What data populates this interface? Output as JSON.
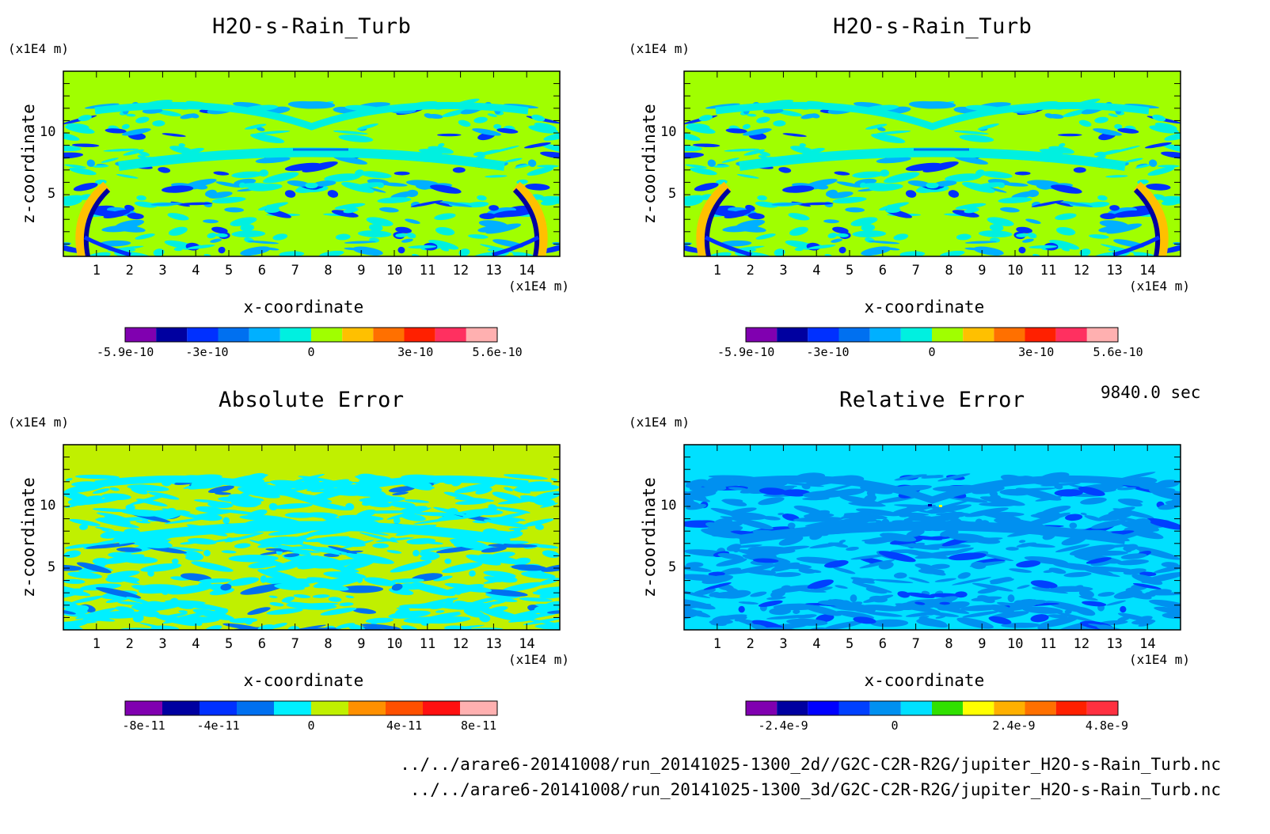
{
  "panels": [
    {
      "title": "H2O-s-Rain_Turb",
      "y_unit": "(x1E4 m)",
      "x_unit": "(x1E4 m)",
      "xlabel": "x-coordinate",
      "ylabel": "z-coordinate",
      "colorbar": {
        "colors": [
          "#8000b0",
          "#0000a0",
          "#0030ff",
          "#0070f0",
          "#00b0ff",
          "#00f0e0",
          "#a0ff00",
          "#ffc000",
          "#ff7000",
          "#ff2000",
          "#ff3060",
          "#ffb0b0"
        ],
        "labels": [
          "-5.9e-10",
          "-3e-10",
          "0",
          "3e-10",
          "5.6e-10"
        ]
      }
    },
    {
      "title": "H2O-s-Rain_Turb",
      "y_unit": "(x1E4 m)",
      "x_unit": "(x1E4 m)",
      "xlabel": "x-coordinate",
      "ylabel": "z-coordinate",
      "colorbar": {
        "colors": [
          "#8000b0",
          "#0000a0",
          "#0030ff",
          "#0070f0",
          "#00b0ff",
          "#00f0e0",
          "#a0ff00",
          "#ffc000",
          "#ff7000",
          "#ff2000",
          "#ff3060",
          "#ffb0b0"
        ],
        "labels": [
          "-5.9e-10",
          "-3e-10",
          "0",
          "3e-10",
          "5.6e-10"
        ]
      }
    },
    {
      "title": "Absolute Error",
      "y_unit": "(x1E4 m)",
      "x_unit": "(x1E4 m)",
      "xlabel": "x-coordinate",
      "ylabel": "z-coordinate",
      "colorbar": {
        "colors": [
          "#8000b0",
          "#0000a0",
          "#0030ff",
          "#0070f0",
          "#00f0ff",
          "#c0f000",
          "#ff9000",
          "#ff5000",
          "#ff1010",
          "#ffb0b0"
        ],
        "labels": [
          "-8e-11",
          "-4e-11",
          "0",
          "4e-11",
          "8e-11"
        ]
      }
    },
    {
      "title": "Relative Error",
      "y_unit": "(x1E4 m)",
      "x_unit": "(x1E4 m)",
      "xlabel": "x-coordinate",
      "ylabel": "z-coordinate",
      "colorbar": {
        "colors": [
          "#8000b0",
          "#0000a0",
          "#0000ff",
          "#0040ff",
          "#0090f0",
          "#00e0ff",
          "#30e000",
          "#ffff00",
          "#ffb000",
          "#ff7000",
          "#ff2000",
          "#ff3040"
        ],
        "labels": [
          "-2.4e-9",
          "0",
          "2.4e-9",
          "4.8e-9"
        ]
      }
    }
  ],
  "chart_data": [
    {
      "type": "heatmap",
      "title": "H2O-s-Rain_Turb",
      "xlabel": "x-coordinate",
      "ylabel": "z-coordinate",
      "x_ticks": [
        "1",
        "2",
        "3",
        "4",
        "5",
        "6",
        "7",
        "8",
        "9",
        "10",
        "11",
        "12",
        "13",
        "14"
      ],
      "y_ticks": [
        "5",
        "10"
      ],
      "xlim": [
        0,
        15
      ],
      "ylim": [
        0,
        15
      ],
      "color_range": [
        -5.9e-10,
        5.6e-10
      ]
    },
    {
      "type": "heatmap",
      "title": "H2O-s-Rain_Turb",
      "xlabel": "x-coordinate",
      "ylabel": "z-coordinate",
      "x_ticks": [
        "1",
        "2",
        "3",
        "4",
        "5",
        "6",
        "7",
        "8",
        "9",
        "10",
        "11",
        "12",
        "13",
        "14"
      ],
      "y_ticks": [
        "5",
        "10"
      ],
      "xlim": [
        0,
        15
      ],
      "ylim": [
        0,
        15
      ],
      "color_range": [
        -5.9e-10,
        5.6e-10
      ]
    },
    {
      "type": "heatmap",
      "title": "Absolute Error",
      "xlabel": "x-coordinate",
      "ylabel": "z-coordinate",
      "x_ticks": [
        "1",
        "2",
        "3",
        "4",
        "5",
        "6",
        "7",
        "8",
        "9",
        "10",
        "11",
        "12",
        "13",
        "14"
      ],
      "y_ticks": [
        "5",
        "10"
      ],
      "xlim": [
        0,
        15
      ],
      "ylim": [
        0,
        15
      ],
      "color_range": [
        -1e-10,
        1e-10
      ]
    },
    {
      "type": "heatmap",
      "title": "Relative Error",
      "xlabel": "x-coordinate",
      "ylabel": "z-coordinate",
      "x_ticks": [
        "1",
        "2",
        "3",
        "4",
        "5",
        "6",
        "7",
        "8",
        "9",
        "10",
        "11",
        "12",
        "13",
        "14"
      ],
      "y_ticks": [
        "5",
        "10"
      ],
      "xlim": [
        0,
        15
      ],
      "ylim": [
        0,
        15
      ],
      "color_range": [
        -4.8e-09,
        6e-09
      ]
    }
  ],
  "time_label": "9840.0 sec",
  "files": [
    "../../arare6-20141008/run_20141025-1300_2d//G2C-C2R-R2G/jupiter_H2O-s-Rain_Turb.nc",
    "../../arare6-20141008/run_20141025-1300_3d/G2C-C2R-R2G/jupiter_H2O-s-Rain_Turb.nc"
  ]
}
